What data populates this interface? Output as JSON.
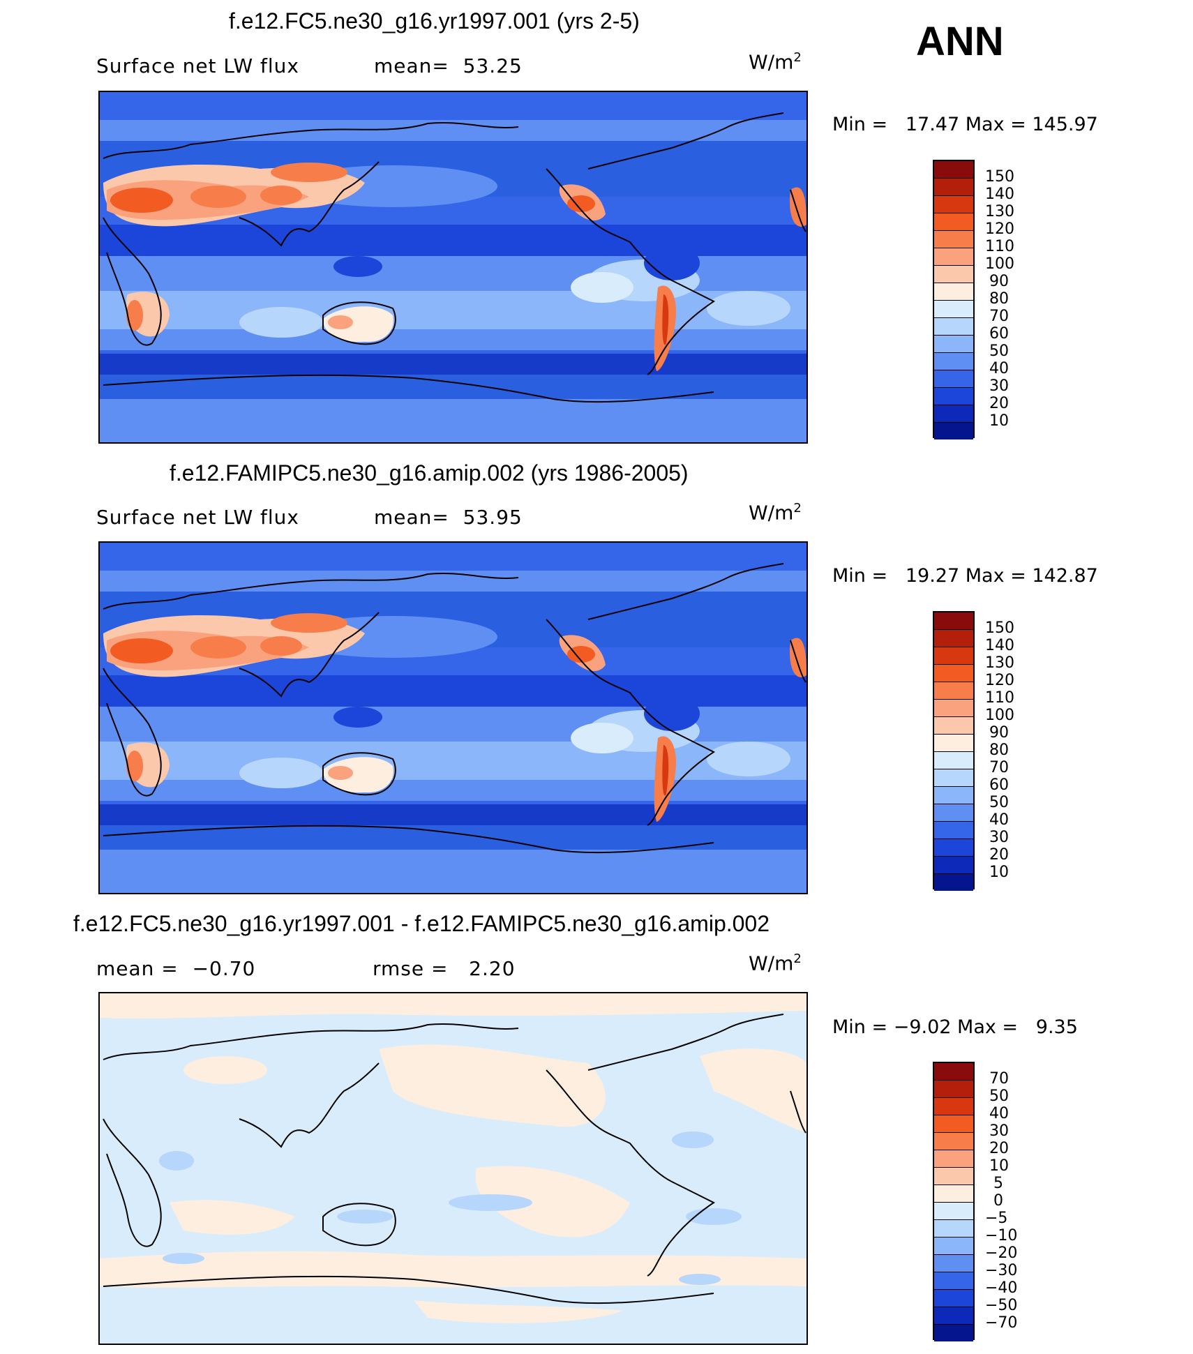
{
  "season": "ANN",
  "units_base": "W/m",
  "units_exp": "2",
  "panels": [
    {
      "title": "f.e12.FC5.ne30_g16.yr1997.001 (yrs 2-5)",
      "left_text": "Surface net LW flux",
      "mid_text": "mean=  53.25",
      "min_max": "Min =   17.47 Max = 145.97",
      "kind": "field",
      "bg": "#2a5fe0",
      "levels": [
        "150",
        "140",
        "130",
        "120",
        "110",
        "100",
        "90",
        "80",
        "70",
        "60",
        "50",
        "40",
        "30",
        "20",
        "10"
      ],
      "colors": [
        "#8a0b0b",
        "#b31f0b",
        "#d8380f",
        "#f25b22",
        "#f77d4a",
        "#f9a27d",
        "#fbc8ac",
        "#fdeee0",
        "#d9ecfb",
        "#b7d6fb",
        "#8bb6f9",
        "#5f8ff3",
        "#3566ea",
        "#1c45d9",
        "#0c29ba",
        "#05158e"
      ]
    },
    {
      "title": "f.e12.FAMIPC5.ne30_g16.amip.002 (yrs 1986-2005)",
      "left_text": "Surface net LW flux",
      "mid_text": "mean=  53.95",
      "min_max": "Min =   19.27 Max = 142.87",
      "kind": "field",
      "bg": "#2a5fe0",
      "levels": [
        "150",
        "140",
        "130",
        "120",
        "110",
        "100",
        "90",
        "80",
        "70",
        "60",
        "50",
        "40",
        "30",
        "20",
        "10"
      ],
      "colors": [
        "#8a0b0b",
        "#b31f0b",
        "#d8380f",
        "#f25b22",
        "#f77d4a",
        "#f9a27d",
        "#fbc8ac",
        "#fdeee0",
        "#d9ecfb",
        "#b7d6fb",
        "#8bb6f9",
        "#5f8ff3",
        "#3566ea",
        "#1c45d9",
        "#0c29ba",
        "#05158e"
      ]
    },
    {
      "title": "f.e12.FC5.ne30_g16.yr1997.001 - f.e12.FAMIPC5.ne30_g16.amip.002",
      "left_text": "mean =  −0.70",
      "mid_text": "rmse =   2.20",
      "min_max": "Min = −9.02 Max =   9.35",
      "kind": "diff",
      "bg": "#d9e8fb",
      "levels": [
        "70",
        "50",
        "40",
        "30",
        "20",
        "10",
        "5",
        "0",
        "−5",
        "−10",
        "−20",
        "−30",
        "−40",
        "−50",
        "−70"
      ],
      "colors": [
        "#8a0b0b",
        "#b31f0b",
        "#d8380f",
        "#f25b22",
        "#f77d4a",
        "#f9a27d",
        "#fbc8ac",
        "#fdeee0",
        "#d9ecfb",
        "#b7d6fb",
        "#8bb6f9",
        "#5f8ff3",
        "#3566ea",
        "#1c45d9",
        "#0c29ba",
        "#05158e"
      ]
    }
  ]
}
